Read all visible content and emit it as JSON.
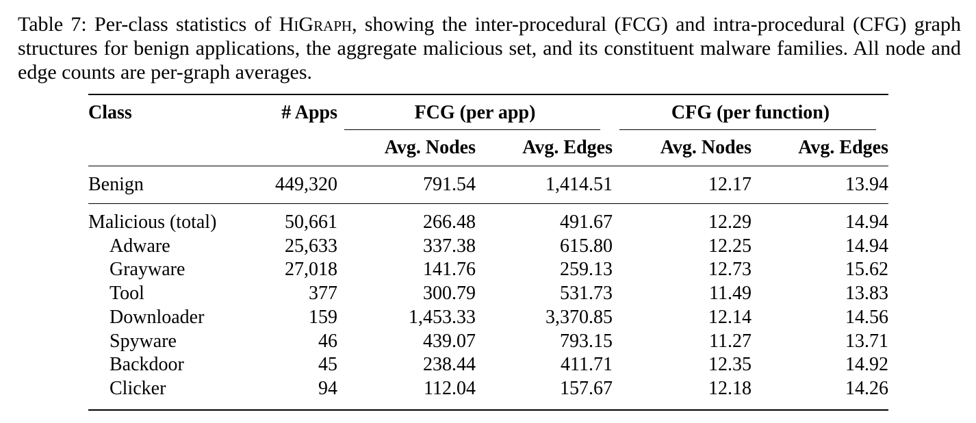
{
  "caption": {
    "prefix": "Table 7: Per-class statistics of ",
    "smallcaps": "HiGraph",
    "suffix": ", showing the inter-procedural (FCG) and intra-procedural (CFG) graph structures for benign applications, the aggregate malicious set, and its constituent malware families. All node and edge counts are per-graph averages."
  },
  "table": {
    "headers": {
      "class": "Class",
      "apps": "# Apps",
      "fcg_group": "FCG (per app)",
      "cfg_group": "CFG (per function)",
      "fcg_nodes": "Avg. Nodes",
      "fcg_edges": "Avg. Edges",
      "cfg_nodes": "Avg. Nodes",
      "cfg_edges": "Avg. Edges"
    },
    "benign": {
      "class": "Benign",
      "apps": "449,320",
      "fcg_nodes": "791.54",
      "fcg_edges": "1,414.51",
      "cfg_nodes": "12.17",
      "cfg_edges": "13.94"
    },
    "malicious": [
      {
        "class": "Malicious (total)",
        "apps": "50,661",
        "fcg_nodes": "266.48",
        "fcg_edges": "491.67",
        "cfg_nodes": "12.29",
        "cfg_edges": "14.94"
      },
      {
        "class": "Adware",
        "apps": "25,633",
        "fcg_nodes": "337.38",
        "fcg_edges": "615.80",
        "cfg_nodes": "12.25",
        "cfg_edges": "14.94"
      },
      {
        "class": "Grayware",
        "apps": "27,018",
        "fcg_nodes": "141.76",
        "fcg_edges": "259.13",
        "cfg_nodes": "12.73",
        "cfg_edges": "15.62"
      },
      {
        "class": "Tool",
        "apps": "377",
        "fcg_nodes": "300.79",
        "fcg_edges": "531.73",
        "cfg_nodes": "11.49",
        "cfg_edges": "13.83"
      },
      {
        "class": "Downloader",
        "apps": "159",
        "fcg_nodes": "1,453.33",
        "fcg_edges": "3,370.85",
        "cfg_nodes": "12.14",
        "cfg_edges": "14.56"
      },
      {
        "class": "Spyware",
        "apps": "46",
        "fcg_nodes": "439.07",
        "fcg_edges": "793.15",
        "cfg_nodes": "11.27",
        "cfg_edges": "13.71"
      },
      {
        "class": "Backdoor",
        "apps": "45",
        "fcg_nodes": "238.44",
        "fcg_edges": "411.71",
        "cfg_nodes": "12.35",
        "cfg_edges": "14.92"
      },
      {
        "class": "Clicker",
        "apps": "94",
        "fcg_nodes": "112.04",
        "fcg_edges": "157.67",
        "cfg_nodes": "12.18",
        "cfg_edges": "14.26"
      }
    ]
  }
}
